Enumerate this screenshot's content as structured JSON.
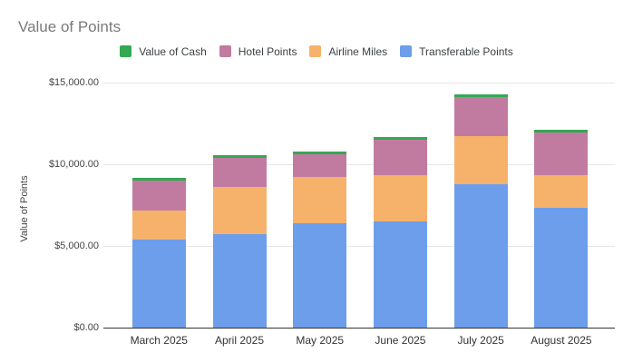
{
  "chart_data": {
    "type": "bar",
    "stacked": true,
    "title": "Value of Points",
    "ylabel": "Value of Points",
    "xlabel": "",
    "categories": [
      "March 2025",
      "April 2025",
      "May 2025",
      "June 2025",
      "July 2025",
      "August 2025"
    ],
    "series": [
      {
        "name": "Transferable Points",
        "color": "#6d9eeb",
        "values": [
          5400,
          5700,
          6400,
          6500,
          8750,
          7300
        ]
      },
      {
        "name": "Airline Miles",
        "color": "#f6b26b",
        "values": [
          1750,
          2900,
          2800,
          2850,
          2950,
          2000
        ]
      },
      {
        "name": "Hotel Points",
        "color": "#c27ba0",
        "values": [
          1850,
          1800,
          1400,
          2150,
          2400,
          2650
        ]
      },
      {
        "name": "Value of Cash",
        "color": "#34a853",
        "values": [
          150,
          150,
          150,
          150,
          150,
          150
        ]
      }
    ],
    "legend_order": [
      "Value of Cash",
      "Hotel Points",
      "Airline Miles",
      "Transferable Points"
    ],
    "legend_position": "top",
    "grid": true,
    "ylim": [
      0,
      15000
    ],
    "yticks": [
      {
        "value": 0,
        "label": "$0.00"
      },
      {
        "value": 5000,
        "label": "$5,000.00"
      },
      {
        "value": 10000,
        "label": "$10,000.00"
      },
      {
        "value": 15000,
        "label": "$15,000.00"
      }
    ]
  }
}
